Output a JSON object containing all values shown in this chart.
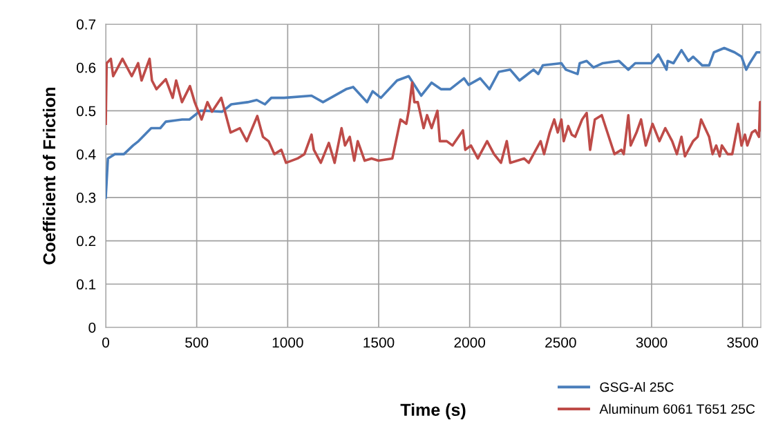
{
  "chart_data": {
    "type": "line",
    "xlabel": "Time (s)",
    "ylabel": "Coefficient of Friction",
    "xlim": [
      0,
      3600
    ],
    "xticks": [
      0,
      500,
      1000,
      1500,
      2000,
      2500,
      3000,
      3500
    ],
    "ylim": [
      0,
      0.7
    ],
    "yticks": [
      0,
      0.1,
      0.2,
      0.3,
      0.4,
      0.5,
      0.6,
      0.7
    ],
    "grid": true,
    "legend": "bottom right",
    "marker": "none",
    "line_style": "solid",
    "series": [
      {
        "name": "GSG-Al 25C",
        "color": "#4a7ebb",
        "x": [
          0,
          12,
          50,
          100,
          150,
          180,
          250,
          300,
          330,
          420,
          460,
          520,
          560,
          640,
          690,
          780,
          830,
          875,
          910,
          980,
          1131,
          1194,
          1321,
          1360,
          1436,
          1467,
          1512,
          1601,
          1665,
          1734,
          1791,
          1842,
          1893,
          1969,
          1994,
          2058,
          2109,
          2160,
          2223,
          2274,
          2351,
          2377,
          2402,
          2504,
          2529,
          2593,
          2605,
          2643,
          2681,
          2732,
          2821,
          2872,
          2910,
          2999,
          3037,
          3082,
          3088,
          3120,
          3164,
          3202,
          3228,
          3278,
          3316,
          3342,
          3399,
          3456,
          3494,
          3520,
          3539,
          3577,
          3590
        ],
        "values": [
          0.3,
          0.39,
          0.4,
          0.4,
          0.42,
          0.43,
          0.46,
          0.46,
          0.475,
          0.48,
          0.48,
          0.5,
          0.5,
          0.498,
          0.515,
          0.52,
          0.525,
          0.515,
          0.53,
          0.53,
          0.535,
          0.52,
          0.55,
          0.555,
          0.52,
          0.545,
          0.53,
          0.57,
          0.58,
          0.535,
          0.565,
          0.55,
          0.55,
          0.575,
          0.56,
          0.575,
          0.55,
          0.59,
          0.595,
          0.57,
          0.595,
          0.585,
          0.605,
          0.61,
          0.595,
          0.585,
          0.61,
          0.615,
          0.6,
          0.61,
          0.615,
          0.595,
          0.61,
          0.61,
          0.63,
          0.595,
          0.615,
          0.61,
          0.64,
          0.615,
          0.625,
          0.605,
          0.605,
          0.635,
          0.645,
          0.635,
          0.625,
          0.595,
          0.61,
          0.635,
          0.635
        ]
      },
      {
        "name": "Aluminum 6061 T651 25C",
        "color": "#be4b48",
        "x": [
          0,
          5,
          28,
          41,
          92,
          143,
          178,
          197,
          241,
          254,
          279,
          330,
          368,
          387,
          419,
          463,
          489,
          527,
          559,
          584,
          635,
          686,
          737,
          775,
          833,
          864,
          895,
          927,
          965,
          991,
          1054,
          1092,
          1131,
          1144,
          1182,
          1226,
          1258,
          1296,
          1315,
          1341,
          1366,
          1385,
          1423,
          1461,
          1499,
          1575,
          1595,
          1620,
          1652,
          1665,
          1684,
          1696,
          1715,
          1747,
          1766,
          1791,
          1823,
          1836,
          1874,
          1906,
          1963,
          1976,
          2007,
          2045,
          2096,
          2134,
          2172,
          2204,
          2223,
          2299,
          2325,
          2351,
          2390,
          2409,
          2440,
          2465,
          2484,
          2504,
          2517,
          2542,
          2561,
          2580,
          2618,
          2643,
          2662,
          2688,
          2726,
          2757,
          2796,
          2834,
          2847,
          2872,
          2885,
          2917,
          2942,
          2968,
          3005,
          3043,
          3075,
          3113,
          3139,
          3164,
          3183,
          3228,
          3253,
          3272,
          3316,
          3335,
          3355,
          3374,
          3386,
          3418,
          3443,
          3475,
          3494,
          3513,
          3526,
          3551,
          3570,
          3590,
          3596,
          3600
        ],
        "values": [
          0.47,
          0.61,
          0.62,
          0.58,
          0.62,
          0.58,
          0.61,
          0.57,
          0.62,
          0.57,
          0.55,
          0.573,
          0.53,
          0.57,
          0.52,
          0.557,
          0.52,
          0.48,
          0.52,
          0.498,
          0.53,
          0.45,
          0.46,
          0.43,
          0.488,
          0.44,
          0.43,
          0.4,
          0.41,
          0.38,
          0.39,
          0.4,
          0.445,
          0.41,
          0.38,
          0.426,
          0.38,
          0.46,
          0.42,
          0.44,
          0.385,
          0.43,
          0.385,
          0.39,
          0.385,
          0.39,
          0.43,
          0.48,
          0.47,
          0.5,
          0.565,
          0.52,
          0.52,
          0.46,
          0.49,
          0.46,
          0.5,
          0.43,
          0.43,
          0.42,
          0.455,
          0.41,
          0.42,
          0.39,
          0.43,
          0.4,
          0.38,
          0.43,
          0.38,
          0.39,
          0.38,
          0.4,
          0.43,
          0.4,
          0.45,
          0.48,
          0.45,
          0.48,
          0.43,
          0.465,
          0.445,
          0.44,
          0.48,
          0.495,
          0.41,
          0.48,
          0.49,
          0.45,
          0.4,
          0.41,
          0.4,
          0.49,
          0.42,
          0.45,
          0.48,
          0.42,
          0.47,
          0.43,
          0.46,
          0.43,
          0.4,
          0.44,
          0.395,
          0.43,
          0.44,
          0.48,
          0.44,
          0.4,
          0.42,
          0.395,
          0.42,
          0.4,
          0.4,
          0.47,
          0.42,
          0.445,
          0.42,
          0.45,
          0.455,
          0.44,
          0.52,
          0.455
        ]
      }
    ]
  }
}
